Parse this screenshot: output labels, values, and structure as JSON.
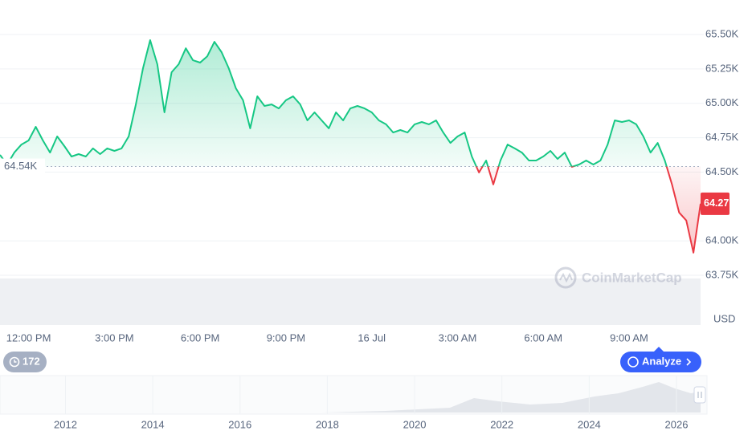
{
  "chart_data": {
    "type": "line",
    "categories": [
      null,
      null,
      null,
      null,
      "12:00 PM",
      null,
      null,
      null,
      null,
      null,
      null,
      null,
      null,
      null,
      null,
      null,
      "3:00 PM",
      null,
      null,
      null,
      null,
      null,
      null,
      null,
      null,
      null,
      null,
      null,
      "6:00 PM",
      null,
      null,
      null,
      null,
      null,
      null,
      null,
      null,
      null,
      null,
      null,
      "9:00 PM",
      null,
      null,
      null,
      null,
      null,
      null,
      null,
      null,
      null,
      null,
      null,
      "16 Jul",
      null,
      null,
      null,
      null,
      null,
      null,
      null,
      null,
      null,
      null,
      null,
      "3:00 AM",
      null,
      null,
      null,
      null,
      null,
      null,
      null,
      null,
      null,
      null,
      null,
      "6:00 AM",
      null,
      null,
      null,
      null,
      null,
      null,
      null,
      null,
      null,
      null,
      null,
      "9:00 AM",
      null,
      null,
      null,
      null,
      null,
      null,
      null,
      null,
      null,
      null
    ],
    "values": [
      64625,
      64555,
      64642,
      64700,
      64730,
      64829,
      64730,
      64642,
      64759,
      64689,
      64613,
      64631,
      64613,
      64672,
      64631,
      64672,
      64654,
      64672,
      64759,
      64992,
      65255,
      65459,
      65284,
      64934,
      65226,
      65284,
      65400,
      65313,
      65296,
      65342,
      65447,
      65372,
      65255,
      65109,
      65022,
      64818,
      65051,
      64981,
      64992,
      64963,
      65022,
      65051,
      64992,
      64876,
      64934,
      64876,
      64818,
      64934,
      64876,
      64963,
      64981,
      64963,
      64934,
      64876,
      64847,
      64788,
      64806,
      64788,
      64847,
      64864,
      64847,
      64876,
      64788,
      64712,
      64759,
      64788,
      64613,
      64497,
      64584,
      64410,
      64584,
      64700,
      64672,
      64642,
      64584,
      64584,
      64613,
      64654,
      64596,
      64642,
      64538,
      64555,
      64584,
      64555,
      64584,
      64700,
      64876,
      64864,
      64876,
      64847,
      64759,
      64642,
      64712,
      64584,
      64410,
      64206,
      64148,
      63914,
      64270
    ],
    "up_color": "#16c784",
    "down_color": "#ea3943",
    "baseline": {
      "value": 64540,
      "label": "64.54K"
    },
    "last_price": {
      "value": 64270,
      "label": "64.27K"
    },
    "ylim": [
      63388,
      65751
    ],
    "yticks": [
      {
        "value": 65500,
        "label": "65.50K"
      },
      {
        "value": 65250,
        "label": "65.25K"
      },
      {
        "value": 65000,
        "label": "65.00K"
      },
      {
        "value": 64750,
        "label": "64.75K"
      },
      {
        "value": 64500,
        "label": "64.50K"
      },
      {
        "value": 64000,
        "label": "64.00K"
      },
      {
        "value": 63750,
        "label": "63.75K"
      }
    ],
    "currency": "USD",
    "watermark": "CoinMarketCap",
    "grid": true
  },
  "controls": {
    "alerts_count": "172",
    "analyze_button": "Analyze"
  },
  "navigator": {
    "xlim": [
      2010.5,
      2026.7
    ],
    "xticks": [
      2012,
      2014,
      2016,
      2018,
      2020,
      2022,
      2024,
      2026
    ]
  }
}
